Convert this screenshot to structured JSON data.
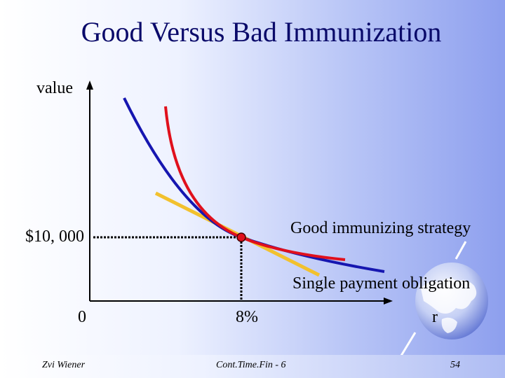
{
  "slide": {
    "title": "Good Versus Bad Immunization"
  },
  "diagram": {
    "y_axis_label": "value",
    "x_axis_label": "r",
    "y_marker_label": "$10, 000",
    "origin_label": "0",
    "x_marker_label": "8%",
    "good_strategy_label": "Good immunizing strategy",
    "single_payment_label": "Single payment obligation",
    "colors": {
      "good_strategy_curve": "#e0101c",
      "single_payment_curve": "#1616b0",
      "tangent_line": "#f2c12e",
      "point": "#e0101c",
      "axes": "#000000"
    }
  },
  "footer": {
    "author": "Zvi Wiener",
    "course": "Cont.Time.Fin - 6",
    "page": "54"
  },
  "decor": {
    "globe_icon": "globe-icon"
  }
}
